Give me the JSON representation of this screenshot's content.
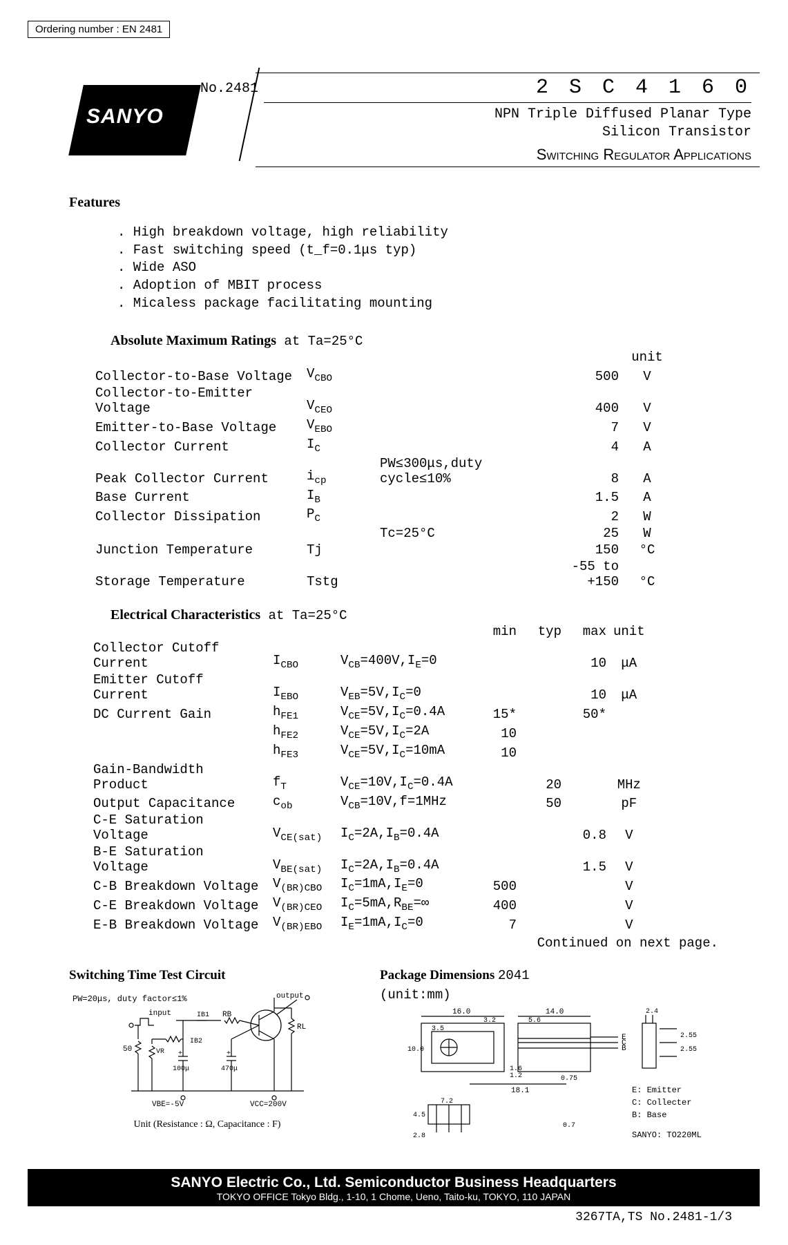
{
  "ordering": "Ordering number : EN  2481",
  "doc_no": "No.2481",
  "logo": "SANYO",
  "part_no": "2 S C 4 1 6 0",
  "subtitle_l1": "NPN Triple Diffused Planar Type",
  "subtitle_l2": "Silicon Transistor",
  "apps": "Switching Regulator Applications",
  "features_title": "Features",
  "features": [
    ". High breakdown voltage, high reliability",
    ". Fast switching speed (t_f=0.1μs typ)",
    ". Wide ASO",
    ". Adoption of MBIT process",
    ". Micaless package facilitating mounting"
  ],
  "amr_title": "Absolute Maximum Ratings",
  "amr_cond": " at  Ta=25°C",
  "amr_unit_hdr": "unit",
  "amr": [
    {
      "p": "Collector-to-Base Voltage",
      "s": "V<sub>CBO</sub>",
      "c": "",
      "v": "500",
      "u": "V"
    },
    {
      "p": "Collector-to-Emitter Voltage",
      "s": "V<sub>CEO</sub>",
      "c": "",
      "v": "400",
      "u": "V"
    },
    {
      "p": "Emitter-to-Base Voltage",
      "s": "V<sub>EBO</sub>",
      "c": "",
      "v": "7",
      "u": "V"
    },
    {
      "p": "Collector Current",
      "s": "I<sub>C</sub>",
      "c": "",
      "v": "4",
      "u": "A"
    },
    {
      "p": "Peak Collector Current",
      "s": "i<sub>cp</sub>",
      "c": "PW≤300μs,duty cycle≤10%",
      "v": "8",
      "u": "A"
    },
    {
      "p": "Base Current",
      "s": "I<sub>B</sub>",
      "c": "",
      "v": "1.5",
      "u": "A"
    },
    {
      "p": "Collector Dissipation",
      "s": "P<sub>C</sub>",
      "c": "",
      "v": "2",
      "u": "W"
    },
    {
      "p": "",
      "s": "",
      "c": "Tc=25°C",
      "v": "25",
      "u": "W"
    },
    {
      "p": "Junction Temperature",
      "s": "Tj",
      "c": "",
      "v": "150",
      "u": "°C"
    },
    {
      "p": "Storage Temperature",
      "s": "Tstg",
      "c": "",
      "v": "-55 to +150",
      "u": "°C"
    }
  ],
  "elec_title": "Electrical Characteristics",
  "elec_cond": " at  Ta=25°C",
  "elec_hdrs": {
    "min": "min",
    "typ": "typ",
    "max": "max",
    "unit": "unit"
  },
  "elec": [
    {
      "p": "Collector Cutoff Current",
      "s": "I<sub>CBO</sub>",
      "c": "V<sub>CB</sub>=400V,I<sub>E</sub>=0",
      "min": "",
      "typ": "",
      "max": "10",
      "u": "μA"
    },
    {
      "p": "Emitter Cutoff Current",
      "s": "I<sub>EBO</sub>",
      "c": "V<sub>EB</sub>=5V,I<sub>C</sub>=0",
      "min": "",
      "typ": "",
      "max": "10",
      "u": "μA"
    },
    {
      "p": "DC Current Gain",
      "s": "h<sub>FE1</sub>",
      "c": "V<sub>CE</sub>=5V,I<sub>C</sub>=0.4A",
      "min": "15*",
      "typ": "",
      "max": "50*",
      "u": ""
    },
    {
      "p": "",
      "s": "h<sub>FE2</sub>",
      "c": "V<sub>CE</sub>=5V,I<sub>C</sub>=2A",
      "min": "10",
      "typ": "",
      "max": "",
      "u": ""
    },
    {
      "p": "",
      "s": "h<sub>FE3</sub>",
      "c": "V<sub>CE</sub>=5V,I<sub>C</sub>=10mA",
      "min": "10",
      "typ": "",
      "max": "",
      "u": ""
    },
    {
      "p": "Gain-Bandwidth Product",
      "s": "f<sub>T</sub>",
      "c": "V<sub>CE</sub>=10V,I<sub>C</sub>=0.4A",
      "min": "",
      "typ": "20",
      "max": "",
      "u": "MHz"
    },
    {
      "p": "Output Capacitance",
      "s": "c<sub>ob</sub>",
      "c": "V<sub>CB</sub>=10V,f=1MHz",
      "min": "",
      "typ": "50",
      "max": "",
      "u": "pF"
    },
    {
      "p": "C-E Saturation Voltage",
      "s": "V<sub>CE(sat)</sub>",
      "c": "I<sub>C</sub>=2A,I<sub>B</sub>=0.4A",
      "min": "",
      "typ": "",
      "max": "0.8",
      "u": "V"
    },
    {
      "p": "B-E Saturation Voltage",
      "s": "V<sub>BE(sat)</sub>",
      "c": "I<sub>C</sub>=2A,I<sub>B</sub>=0.4A",
      "min": "",
      "typ": "",
      "max": "1.5",
      "u": "V"
    },
    {
      "p": "C-B Breakdown Voltage",
      "s": "V<sub>(BR)CBO</sub>",
      "c": "I<sub>C</sub>=1mA,I<sub>E</sub>=0",
      "min": "500",
      "typ": "",
      "max": "",
      "u": "V"
    },
    {
      "p": "C-E Breakdown Voltage",
      "s": "V<sub>(BR)CEO</sub>",
      "c": "I<sub>C</sub>=5mA,R<sub>BE</sub>=∞",
      "min": "400",
      "typ": "",
      "max": "",
      "u": "V"
    },
    {
      "p": "E-B Breakdown Voltage",
      "s": "V<sub>(BR)EBO</sub>",
      "c": "I<sub>E</sub>=1mA,I<sub>C</sub>=0",
      "min": "7",
      "typ": "",
      "max": "",
      "u": "V"
    }
  ],
  "cont_note": "Continued on next page.",
  "switch_title": "Switching Time Test Circuit",
  "switch_note": "Unit (Resistance : Ω, Capacitance : F)",
  "pkg_title": "Package Dimensions",
  "pkg_no": "2041",
  "pkg_unit": "(unit:mm)",
  "circuit": {
    "pw_note": "PW=20μs, duty factor≤1%",
    "labels": {
      "input": "input",
      "output": "output",
      "ib1": "IB1",
      "ib2": "IB2",
      "rb": "RB",
      "rl": "RL",
      "vr": "VR",
      "50": "50",
      "c1": "100μ",
      "c2": "470μ",
      "vbe": "VBE=-5V",
      "vcc": "VCC=200V"
    }
  },
  "package": {
    "dims": {
      "w1": "16.0",
      "w2": "3.2",
      "w3": "14.0",
      "w4": "2.4",
      "d1": "3.5",
      "d2": "5.6",
      "h1": "10.0",
      "h2": "1.6",
      "h3": "1.2",
      "h4": "0.75",
      "w5": "18.1",
      "w6": "7.2",
      "h5": "4.5",
      "h6": "2.8",
      "t1": "0.7",
      "p1": "2.55",
      "p2": "2.55"
    },
    "pins": {
      "e": "E",
      "c": "C",
      "b": "B"
    },
    "legend": {
      "e": "E: Emitter",
      "c": "C: Collecter",
      "b": "B: Base",
      "pkg": "SANYO: TO220ML"
    }
  },
  "footer": {
    "l1": "SANYO Electric Co., Ltd. Semiconductor Business Headquarters",
    "l2": "TOKYO OFFICE Tokyo Bldg., 1-10, 1 Chome, Ueno, Taito-ku, TOKYO, 110 JAPAN"
  },
  "footer_right": "3267TA,TS No.2481-1/3"
}
